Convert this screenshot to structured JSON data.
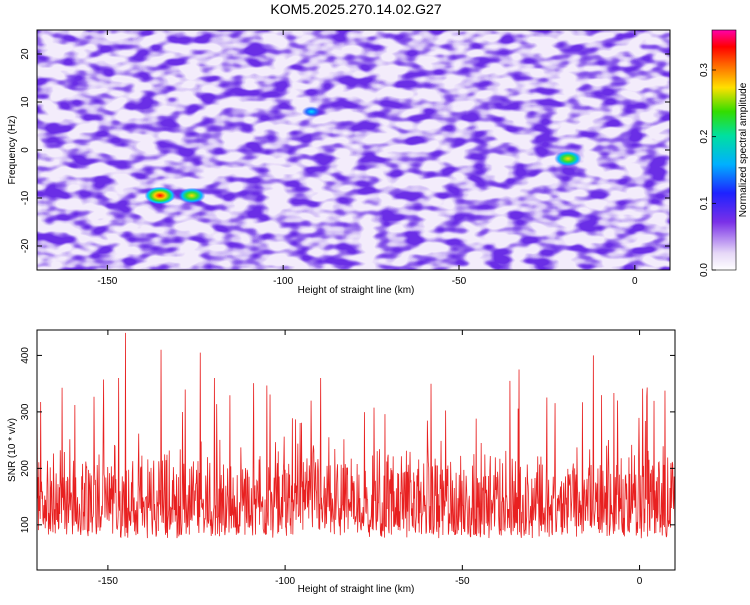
{
  "title": "KOM5.2025.270.14.02.G27",
  "colors": {
    "snr_line": "#e82020",
    "background": "#ffffff",
    "axis": "#000000"
  },
  "chart_data": [
    {
      "type": "heatmap",
      "title": "KOM5.2025.270.14.02.G27",
      "xlabel": "Height of straight line (km)",
      "ylabel": "Frequency (Hz)",
      "xlim": [
        -170,
        10
      ],
      "ylim": [
        -25,
        25
      ],
      "x_ticks": [
        -150,
        -100,
        -50,
        0
      ],
      "y_ticks": [
        -20,
        -10,
        0,
        10,
        20
      ],
      "colormap": "rainbow",
      "colorbar": {
        "label": "Normalized spectral amplitude",
        "range": [
          0.0,
          0.36
        ],
        "ticks": [
          0.0,
          0.1,
          0.2,
          0.3
        ]
      },
      "peaks": [
        {
          "x": -135,
          "y": -9.5,
          "value": 0.36
        },
        {
          "x": -126,
          "y": -9.5,
          "value": 0.3
        },
        {
          "x": -19,
          "y": -1.8,
          "value": 0.3
        },
        {
          "x": -92,
          "y": 8,
          "value": 0.15
        }
      ]
    },
    {
      "type": "line",
      "xlabel": "Height of straight line (km)",
      "ylabel": "SNR (10 * v/v)",
      "xlim": [
        -170,
        10
      ],
      "ylim": [
        20,
        445
      ],
      "x_ticks": [
        -150,
        -100,
        -50,
        0
      ],
      "y_ticks": [
        100,
        200,
        300,
        400
      ],
      "spikes": [
        {
          "x": -145,
          "value": 440
        },
        {
          "x": -135,
          "value": 410
        },
        {
          "x": -124,
          "value": 405
        },
        {
          "x": -13,
          "value": 400
        },
        {
          "x": -34,
          "value": 375
        },
        {
          "x": -90,
          "value": 360
        },
        {
          "x": -147,
          "value": 360
        },
        {
          "x": -120,
          "value": 360
        }
      ],
      "typical_range": [
        40,
        280
      ]
    }
  ]
}
